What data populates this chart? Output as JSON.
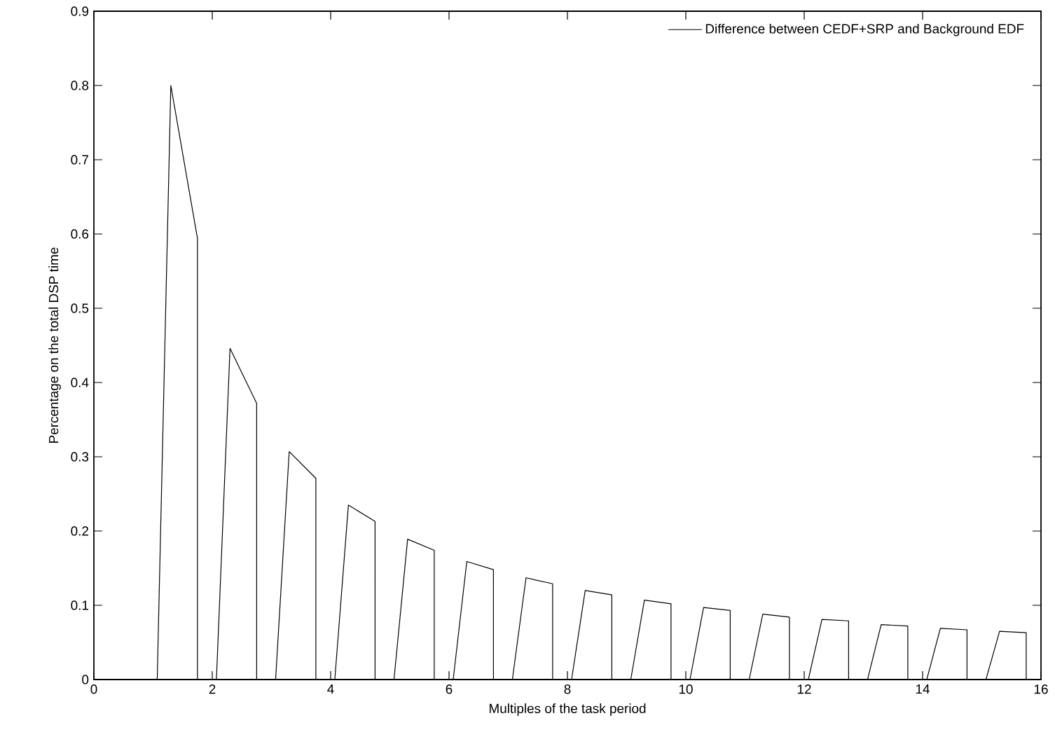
{
  "chart_data": {
    "type": "line",
    "xlabel": "Multiples of the task period",
    "ylabel": "Percentage on the total DSP time",
    "xlim": [
      0,
      16
    ],
    "xticks": [
      0,
      2,
      4,
      6,
      8,
      10,
      12,
      14,
      16
    ],
    "ylim": [
      0,
      0.9
    ],
    "yticks": [
      0,
      0.1,
      0.2,
      0.3,
      0.4,
      0.5,
      0.6,
      0.7,
      0.8,
      0.9
    ],
    "grid": false,
    "legend": "top right",
    "marker": "none",
    "line_style": "solid",
    "series": [
      {
        "name": "Difference between CEDF+SRP and Background EDF",
        "color": "#000000",
        "x": [
          1.07,
          1.3,
          1.75,
          1.75,
          2.07,
          2.3,
          2.75,
          2.75,
          3.07,
          3.3,
          3.75,
          3.75,
          4.07,
          4.3,
          4.75,
          4.75,
          5.07,
          5.3,
          5.75,
          5.75,
          6.07,
          6.3,
          6.75,
          6.75,
          7.07,
          7.3,
          7.75,
          7.75,
          8.07,
          8.3,
          8.75,
          8.75,
          9.07,
          9.3,
          9.75,
          9.75,
          10.07,
          10.3,
          10.75,
          10.75,
          11.07,
          11.3,
          11.75,
          11.75,
          12.07,
          12.3,
          12.75,
          12.75,
          13.07,
          13.3,
          13.75,
          13.75,
          14.07,
          14.3,
          14.75,
          14.75,
          15.07,
          15.3,
          15.75,
          15.75
        ],
        "values": [
          0,
          0.8,
          0.594,
          0,
          0,
          0.446,
          0.372,
          0,
          0,
          0.307,
          0.271,
          0,
          0,
          0.235,
          0.213,
          0,
          0,
          0.189,
          0.174,
          0,
          0,
          0.159,
          0.148,
          0,
          0,
          0.137,
          0.129,
          0,
          0,
          0.12,
          0.114,
          0,
          0,
          0.107,
          0.102,
          0,
          0,
          0.097,
          0.093,
          0,
          0,
          0.088,
          0.084,
          0,
          0,
          0.081,
          0.079,
          0,
          0,
          0.074,
          0.072,
          0,
          0,
          0.069,
          0.067,
          0,
          0,
          0.065,
          0.063,
          0
        ]
      }
    ]
  }
}
